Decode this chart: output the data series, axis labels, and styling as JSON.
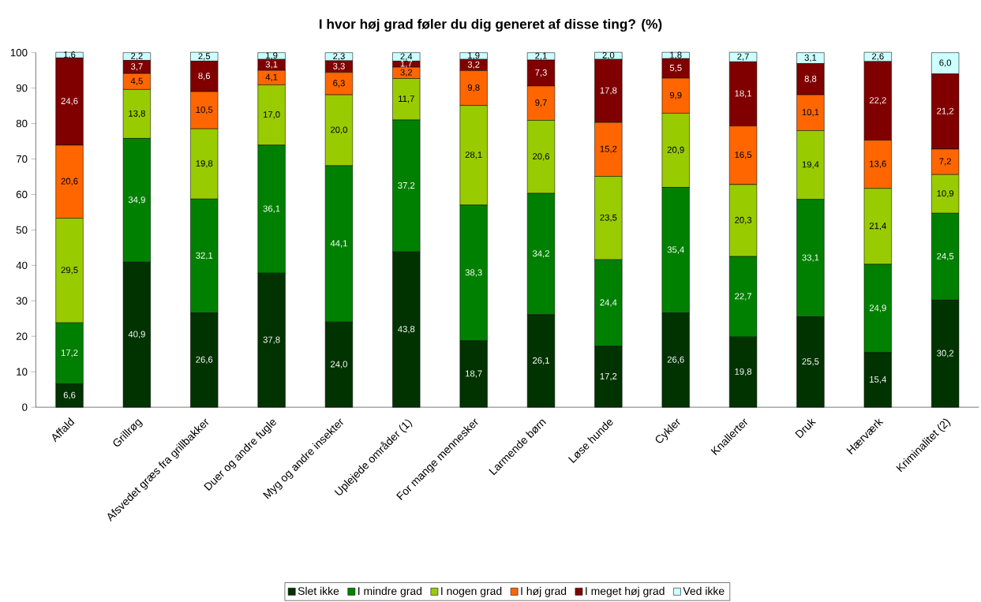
{
  "chart_data": {
    "type": "bar",
    "title": "I hvor høj grad føler du dig generet af disse ting? (%)",
    "stacked": true,
    "legend": "bottom",
    "categories": [
      "Affald",
      "Grillrøg",
      "Afsvedet græs fra grillbakker",
      "Duer og andre fugle",
      "Myg og andre insekter",
      "Uplejede områder (1)",
      "For mange mennesker",
      "Larmende børn",
      "Løse hunde",
      "Cykler",
      "Knallerter",
      "Druk",
      "Hærværk",
      "Kriminalitet (2)"
    ],
    "ylim": [
      0,
      100
    ],
    "yticks": [
      0,
      10,
      20,
      30,
      40,
      50,
      60,
      70,
      80,
      90,
      100
    ],
    "series": [
      {
        "name": "Slet ikke",
        "color": "#003300",
        "values": [
          6.6,
          40.9,
          26.6,
          37.8,
          24.0,
          43.8,
          18.7,
          26.1,
          17.2,
          26.6,
          19.8,
          25.5,
          15.4,
          30.2
        ],
        "value_labels": [
          "6,6",
          "40,9",
          "26,6",
          "37,8",
          "24,0",
          "43,8",
          "18,7",
          "26,1",
          "17,2",
          "26,6",
          "19,8",
          "25,5",
          "15,4",
          "30,2"
        ]
      },
      {
        "name": "I mindre grad",
        "color": "#008000",
        "values": [
          17.2,
          34.9,
          32.1,
          36.1,
          44.1,
          37.2,
          38.3,
          34.2,
          24.4,
          35.4,
          22.7,
          33.1,
          24.9,
          24.5
        ],
        "value_labels": [
          "17,2",
          "34,9",
          "32,1",
          "36,1",
          "44,1",
          "37,2",
          "38,3",
          "34,2",
          "24,4",
          "35,4",
          "22,7",
          "33,1",
          "24,9",
          "24,5"
        ]
      },
      {
        "name": "I nogen grad",
        "color": "#99cc00",
        "values": [
          29.5,
          13.8,
          19.8,
          17.0,
          20.0,
          11.7,
          28.1,
          20.6,
          23.5,
          20.9,
          20.3,
          19.4,
          21.4,
          10.9
        ],
        "value_labels": [
          "29,5",
          "13,8",
          "19,8",
          "17,0",
          "20,0",
          "11,7",
          "28,1",
          "20,6",
          "23,5",
          "20,9",
          "20,3",
          "19,4",
          "21,4",
          "10,9"
        ]
      },
      {
        "name": "I høj grad",
        "color": "#ff6600",
        "values": [
          20.6,
          4.5,
          10.5,
          4.1,
          6.3,
          3.2,
          9.8,
          9.7,
          15.2,
          9.9,
          16.5,
          10.1,
          13.6,
          7.2
        ],
        "value_labels": [
          "20,6",
          "4,5",
          "10,5",
          "4,1",
          "6,3",
          "3,2",
          "9,8",
          "9,7",
          "15,2",
          "9,9",
          "16,5",
          "10,1",
          "13,6",
          "7,2"
        ]
      },
      {
        "name": "I meget høj grad",
        "color": "#800000",
        "values": [
          24.6,
          3.7,
          8.6,
          3.1,
          3.3,
          1.7,
          3.2,
          7.3,
          17.8,
          5.5,
          18.1,
          8.8,
          22.2,
          21.2
        ],
        "value_labels": [
          "24,6",
          "3,7",
          "8,6",
          "3,1",
          "3,3",
          "1,7",
          "3,2",
          "7,3",
          "17,8",
          "5,5",
          "18,1",
          "8,8",
          "22,2",
          "21,2"
        ]
      },
      {
        "name": "Ved ikke",
        "color": "#ccffff",
        "values": [
          1.6,
          2.2,
          2.5,
          1.9,
          2.3,
          2.4,
          1.9,
          2.1,
          2.0,
          1.8,
          2.7,
          3.1,
          2.6,
          6.0
        ],
        "value_labels": [
          "1,6",
          "2,2",
          "2,5",
          "1,9",
          "2,3",
          "2,4",
          "1,9",
          "2,1",
          "2,0",
          "1,8",
          "2,7",
          "3,1",
          "2,6",
          "6,0"
        ]
      }
    ]
  }
}
